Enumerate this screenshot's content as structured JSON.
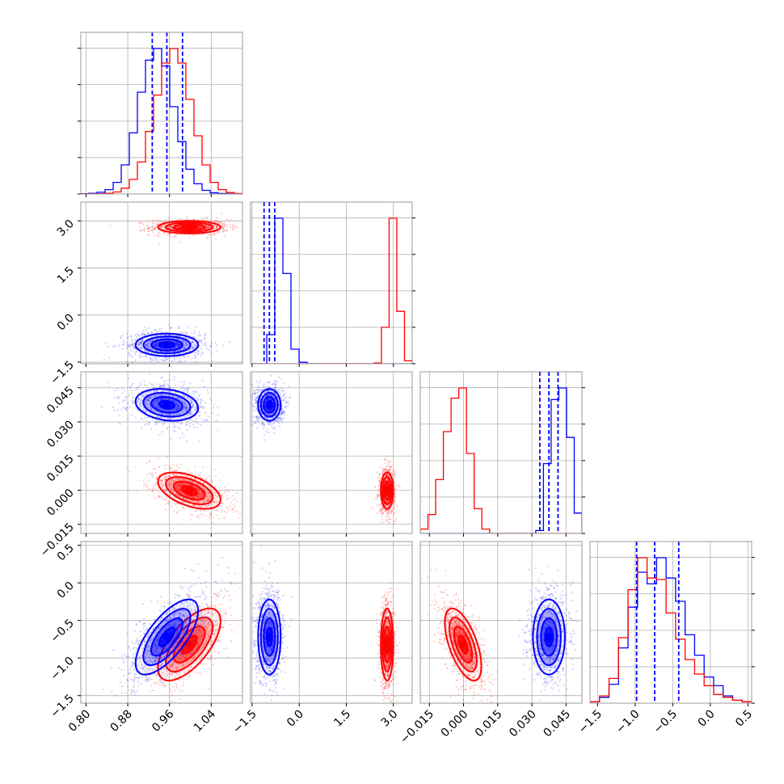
{
  "chart_data": {
    "type": "corner",
    "title": "",
    "parameter_count": 4,
    "grid": true,
    "colors": {
      "series_a": "#0000ff",
      "series_b": "#ff0000"
    },
    "axes": [
      {
        "range": [
          0.79,
          1.1
        ],
        "ticks": [
          0.8,
          0.88,
          0.96,
          1.04
        ],
        "tick_labels": [
          "0.80",
          "0.88",
          "0.96",
          "1.04"
        ]
      },
      {
        "range": [
          -1.55,
          3.6
        ],
        "ticks": [
          -1.5,
          0.0,
          1.5,
          3.0
        ],
        "tick_labels": [
          "−1.5",
          "0.0",
          "1.5",
          "3.0"
        ]
      },
      {
        "range": [
          -0.019,
          0.052
        ],
        "ticks": [
          -0.015,
          0.0,
          0.015,
          0.03,
          0.045
        ],
        "tick_labels": [
          "−0.015",
          "0.000",
          "0.015",
          "0.030",
          "0.045"
        ]
      },
      {
        "range": [
          -1.6,
          0.55
        ],
        "ticks": [
          -1.5,
          -1.0,
          -0.5,
          0.0,
          0.5
        ],
        "tick_labels": [
          "−1.5",
          "−1.0",
          "−0.5",
          "0.0",
          "0.5"
        ]
      }
    ],
    "series": [
      {
        "color": "#0000ff",
        "mean": [
          0.955,
          -0.95,
          0.0375,
          -0.72
        ],
        "sd": [
          0.03,
          0.18,
          0.0035,
          0.25
        ],
        "corr": {
          "0-3": 0.7,
          "2-3": 0.0,
          "0-2": -0.2,
          "1-3": 0.0
        },
        "quantiles": [
          [
            0.927,
            0.955,
            0.985
          ],
          [
            -1.12,
            -0.95,
            -0.78
          ],
          [
            0.0335,
            0.0375,
            0.0415
          ],
          [
            -0.98,
            -0.74,
            -0.42
          ]
        ],
        "histograms": [
          [
            0.002,
            0.005,
            0.012,
            0.03,
            0.08,
            0.2,
            0.42,
            0.7,
            0.92,
            1.0,
            0.88,
            0.6,
            0.36,
            0.17,
            0.07,
            0.025,
            0.008,
            0.003,
            0.001,
            0.0
          ],
          [
            0.0,
            0.0,
            0.2,
            1.0,
            0.62,
            0.1,
            0.01,
            0.0,
            0.0,
            0.0,
            0.0,
            0.0,
            0.0,
            0.0,
            0.0,
            0.0,
            0.0,
            0.0,
            0.0,
            0.0
          ],
          [
            0.0,
            0.0,
            0.0,
            0.0,
            0.0,
            0.0,
            0.0,
            0.0,
            0.0,
            0.0,
            0.0,
            0.0,
            0.0,
            0.0,
            0.0,
            0.02,
            0.48,
            0.92,
            1.0,
            0.66,
            0.14
          ],
          [
            0.01,
            0.04,
            0.13,
            0.38,
            0.66,
            0.9,
            0.82,
            1.0,
            0.86,
            0.7,
            0.47,
            0.33,
            0.18,
            0.12,
            0.05,
            0.02,
            0.01
          ]
        ]
      },
      {
        "color": "#ff0000",
        "mean": [
          0.998,
          2.8,
          -0.0002,
          -0.82
        ],
        "sd": [
          0.03,
          0.1,
          0.004,
          0.24
        ],
        "corr": {
          "0-3": 0.65,
          "2-3": -0.6,
          "0-2": -0.5,
          "1-3": 0.0
        },
        "quantiles": [
          [
            0.968,
            0.998,
            1.028
          ],
          [
            2.7,
            2.8,
            2.9
          ],
          [
            -0.0042,
            -0.0002,
            0.0038
          ],
          [
            -1.06,
            -0.82,
            -0.58
          ]
        ],
        "histograms": [
          [
            0.0,
            0.001,
            0.002,
            0.005,
            0.014,
            0.04,
            0.1,
            0.22,
            0.43,
            0.68,
            0.9,
            1.0,
            0.9,
            0.65,
            0.4,
            0.2,
            0.08,
            0.03,
            0.01,
            0.003
          ],
          [
            0.0,
            0.0,
            0.0,
            0.0,
            0.0,
            0.0,
            0.0,
            0.0,
            0.0,
            0.0,
            0.0,
            0.0,
            0.0,
            0.0,
            0.0,
            0.0,
            0.005,
            0.25,
            1.0,
            0.36,
            0.02
          ],
          [
            0.03,
            0.13,
            0.37,
            0.7,
            0.93,
            1.0,
            0.55,
            0.17,
            0.03,
            0.0,
            0.0,
            0.0,
            0.0,
            0.0,
            0.0,
            0.0,
            0.0,
            0.0,
            0.0,
            0.0,
            0.0
          ],
          [
            0.01,
            0.05,
            0.17,
            0.45,
            0.78,
            1.0,
            0.86,
            0.85,
            0.62,
            0.44,
            0.3,
            0.2,
            0.12,
            0.06,
            0.04,
            0.02,
            0.01
          ]
        ]
      }
    ]
  }
}
